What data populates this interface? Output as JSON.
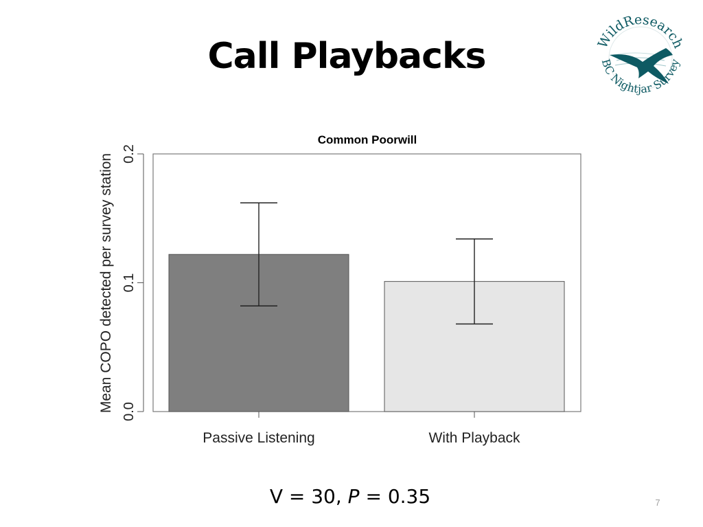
{
  "slide": {
    "title": "Call Playbacks",
    "page_number": "7"
  },
  "logo": {
    "text_top": "WildResearch",
    "text_bottom": "BC Nightjar Survey",
    "color": "#0e5a63"
  },
  "stats": {
    "v_label": "V = 30,",
    "p_symbol": "P",
    "p_value": "= 0.35"
  },
  "chart_data": {
    "type": "bar",
    "title": "Common Poorwill",
    "xlabel": "",
    "ylabel": "Mean COPO detected per survey station",
    "categories": [
      "Passive Listening",
      "With Playback"
    ],
    "values": [
      0.122,
      0.101
    ],
    "error_low": [
      0.082,
      0.068
    ],
    "error_high": [
      0.162,
      0.134
    ],
    "ylim": [
      0,
      0.2
    ],
    "yticks": [
      0.0,
      0.1,
      0.2
    ],
    "ytick_labels": [
      "0.0",
      "0.1",
      "0.2"
    ],
    "bar_colors": [
      "#7f7f7f",
      "#e6e6e6"
    ],
    "grid": false,
    "legend": "none"
  }
}
